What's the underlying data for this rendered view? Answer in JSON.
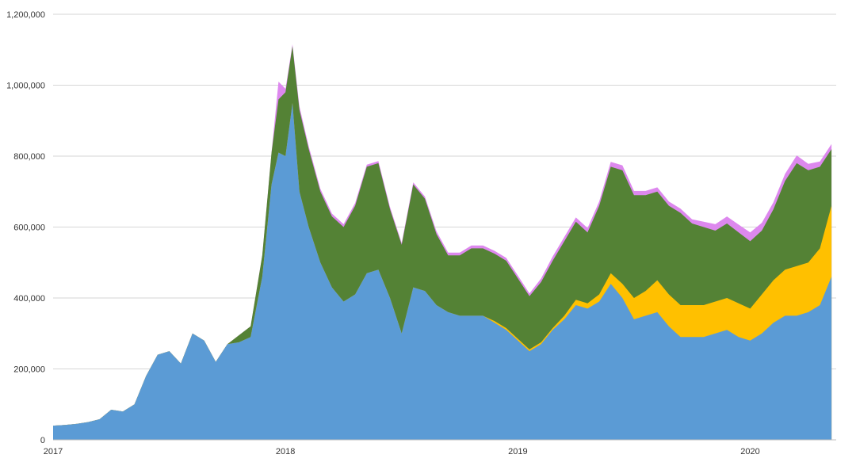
{
  "colors": {
    "background": "#ffffff",
    "grid": "#d6d6d6",
    "axis_text": "#333333",
    "series": [
      "#5b9bd5",
      "#ffc000",
      "#548235",
      "#dd88ee"
    ]
  },
  "chart_data": {
    "type": "area",
    "stacked": true,
    "title": "",
    "xlabel": "",
    "ylabel": "",
    "xlim": [
      2017.0,
      2020.37
    ],
    "ylim": [
      0,
      1200000
    ],
    "grid": true,
    "x_ticks": [
      2017,
      2018,
      2019,
      2020
    ],
    "x_tick_labels": [
      "2017",
      "2018",
      "2019",
      "2020"
    ],
    "y_ticks": [
      0,
      200000,
      400000,
      600000,
      800000,
      1000000,
      1200000
    ],
    "y_tick_labels": [
      "0",
      "200,000",
      "400,000",
      "600,000",
      "800,000",
      "1,000,000",
      "1,200,000"
    ],
    "x": [
      2017.0,
      2017.05,
      2017.1,
      2017.15,
      2017.2,
      2017.25,
      2017.3,
      2017.35,
      2017.4,
      2017.45,
      2017.5,
      2017.55,
      2017.6,
      2017.65,
      2017.7,
      2017.75,
      2017.8,
      2017.85,
      2017.9,
      2017.94,
      2017.97,
      2018.0,
      2018.03,
      2018.06,
      2018.1,
      2018.15,
      2018.2,
      2018.25,
      2018.3,
      2018.35,
      2018.4,
      2018.45,
      2018.5,
      2018.55,
      2018.6,
      2018.65,
      2018.7,
      2018.75,
      2018.8,
      2018.85,
      2018.9,
      2018.95,
      2019.0,
      2019.05,
      2019.1,
      2019.15,
      2019.2,
      2019.25,
      2019.3,
      2019.35,
      2019.4,
      2019.45,
      2019.5,
      2019.55,
      2019.6,
      2019.65,
      2019.7,
      2019.75,
      2019.8,
      2019.85,
      2019.9,
      2019.95,
      2020.0,
      2020.05,
      2020.1,
      2020.15,
      2020.2,
      2020.25,
      2020.3,
      2020.35
    ],
    "series": [
      {
        "values": [
          40000,
          42000,
          45000,
          50000,
          58000,
          85000,
          80000,
          100000,
          180000,
          240000,
          250000,
          215000,
          300000,
          280000,
          220000,
          270000,
          275000,
          290000,
          460000,
          720000,
          810000,
          800000,
          950000,
          700000,
          600000,
          500000,
          430000,
          390000,
          410000,
          470000,
          480000,
          400000,
          300000,
          430000,
          420000,
          380000,
          360000,
          350000,
          350000,
          350000,
          330000,
          310000,
          280000,
          250000,
          270000,
          310000,
          340000,
          380000,
          370000,
          390000,
          440000,
          400000,
          340000,
          350000,
          360000,
          320000,
          290000,
          290000,
          290000,
          300000,
          310000,
          290000,
          280000,
          300000,
          330000,
          350000,
          350000,
          360000,
          380000,
          460000
        ]
      },
      {
        "values": [
          0,
          0,
          0,
          0,
          0,
          0,
          0,
          0,
          0,
          0,
          0,
          0,
          0,
          0,
          0,
          0,
          0,
          0,
          0,
          0,
          0,
          0,
          0,
          0,
          0,
          0,
          0,
          0,
          0,
          0,
          0,
          0,
          0,
          0,
          0,
          0,
          0,
          0,
          0,
          0,
          5000,
          5000,
          5000,
          5000,
          5000,
          5000,
          10000,
          15000,
          15000,
          20000,
          30000,
          40000,
          60000,
          70000,
          90000,
          90000,
          90000,
          90000,
          90000,
          90000,
          90000,
          95000,
          90000,
          110000,
          120000,
          130000,
          140000,
          140000,
          160000,
          200000
        ]
      },
      {
        "values": [
          0,
          0,
          0,
          0,
          0,
          0,
          0,
          0,
          0,
          0,
          0,
          0,
          0,
          0,
          0,
          0,
          20000,
          30000,
          60000,
          90000,
          150000,
          180000,
          160000,
          230000,
          220000,
          200000,
          200000,
          210000,
          250000,
          300000,
          300000,
          250000,
          250000,
          290000,
          260000,
          200000,
          160000,
          170000,
          190000,
          190000,
          190000,
          190000,
          170000,
          150000,
          170000,
          190000,
          210000,
          220000,
          200000,
          250000,
          300000,
          320000,
          290000,
          270000,
          250000,
          250000,
          260000,
          230000,
          220000,
          200000,
          210000,
          200000,
          190000,
          180000,
          200000,
          250000,
          290000,
          260000,
          230000,
          160000
        ]
      },
      {
        "values": [
          0,
          0,
          0,
          0,
          0,
          0,
          0,
          0,
          0,
          0,
          0,
          0,
          0,
          0,
          0,
          0,
          0,
          0,
          0,
          0,
          50000,
          10000,
          5000,
          10000,
          8000,
          8000,
          8000,
          8000,
          8000,
          6000,
          6000,
          6000,
          5000,
          6000,
          6000,
          8000,
          8000,
          8000,
          8000,
          8000,
          8000,
          8000,
          8000,
          8000,
          10000,
          12000,
          12000,
          12000,
          12000,
          12000,
          14000,
          14000,
          12000,
          12000,
          12000,
          12000,
          12000,
          12000,
          15000,
          18000,
          20000,
          22000,
          25000,
          22000,
          20000,
          20000,
          22000,
          18000,
          15000,
          14000
        ]
      }
    ]
  }
}
